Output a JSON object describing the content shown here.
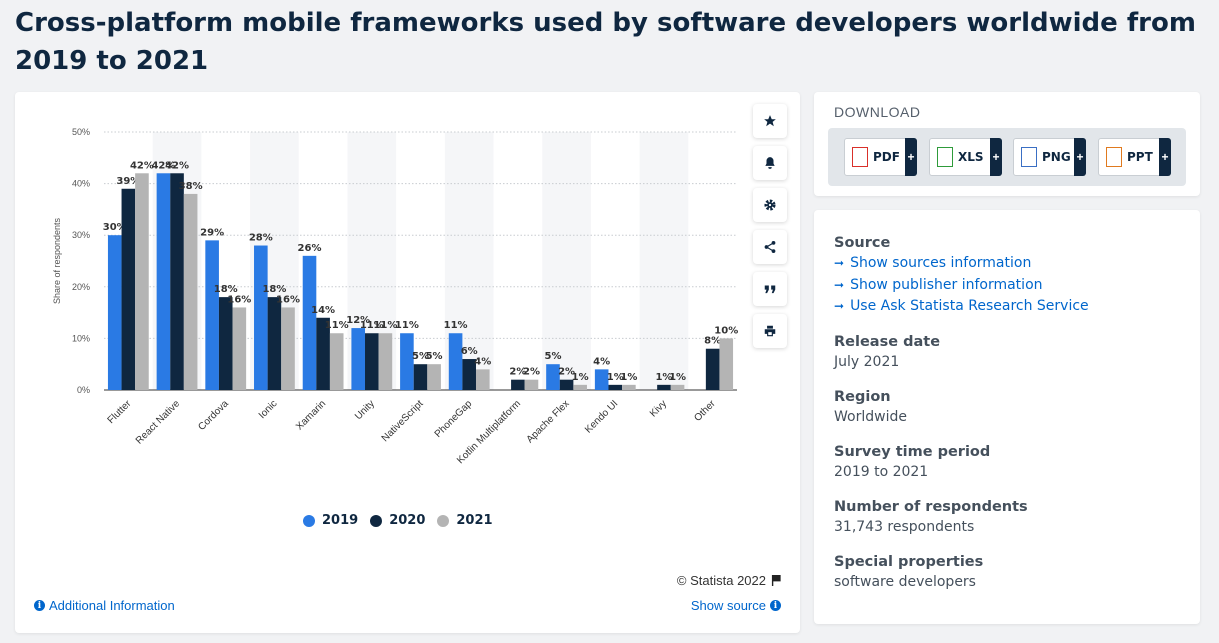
{
  "page": {
    "title": "Cross-platform mobile frameworks used by software developers worldwide from 2019 to 2021"
  },
  "toolbar": {
    "icons": [
      "star-icon",
      "bell-icon",
      "gear-icon",
      "share-icon",
      "quote-icon",
      "print-icon"
    ]
  },
  "chart_data": {
    "type": "bar",
    "title": "",
    "xlabel": "",
    "ylabel": "Share of respondents",
    "ylim": [
      0,
      50
    ],
    "yticks": [
      "0%",
      "10%",
      "20%",
      "30%",
      "40%",
      "50%"
    ],
    "grid": true,
    "legend_position": "bottom",
    "categories": [
      "Flutter",
      "React Native",
      "Cordova",
      "Ionic",
      "Xamarin",
      "Unity",
      "NativeScript",
      "PhoneGap",
      "Kotlin Multiplatform",
      "Apache Flex",
      "Kendo UI",
      "Kivy",
      "Other"
    ],
    "series": [
      {
        "name": "2019",
        "color": "#2a7ae4",
        "values": [
          30,
          42,
          29,
          28,
          26,
          12,
          11,
          11,
          null,
          5,
          4,
          null,
          null
        ],
        "labels": [
          "30%",
          "42%",
          "29%",
          "28%",
          "26%",
          "12%",
          "11%",
          "11%",
          "",
          "5%",
          "4%",
          "",
          ""
        ]
      },
      {
        "name": "2020",
        "color": "#0f2740",
        "values": [
          39,
          42,
          18,
          18,
          14,
          11,
          5,
          6,
          2,
          2,
          1,
          1,
          8
        ],
        "labels": [
          "39%",
          "42%",
          "18%",
          "18%",
          "14%",
          "11%",
          "5%",
          "6%",
          "2%",
          "2%",
          "1%",
          "1%",
          "8%"
        ]
      },
      {
        "name": "2021",
        "color": "#b4b4b4",
        "values": [
          42,
          38,
          16,
          16,
          11,
          11,
          5,
          4,
          2,
          1,
          1,
          1,
          10
        ],
        "labels": [
          "42%",
          "38%",
          "16%",
          "16%",
          "11%",
          "11%",
          "5%",
          "4%",
          "2%",
          "1%",
          "1%",
          "1%",
          "10%"
        ]
      }
    ]
  },
  "legend": {
    "items": [
      {
        "label": "2019",
        "color": "#2a7ae4"
      },
      {
        "label": "2020",
        "color": "#0f2740"
      },
      {
        "label": "2021",
        "color": "#b4b4b4"
      }
    ]
  },
  "footer": {
    "copyright": "© Statista 2022",
    "additional_info": "Additional Information",
    "show_source": "Show source"
  },
  "download": {
    "title": "DOWNLOAD",
    "buttons": [
      {
        "label": "PDF",
        "color": "#d9302a"
      },
      {
        "label": "XLS",
        "color": "#2e9b3a"
      },
      {
        "label": "PNG",
        "color": "#3a6fc4"
      },
      {
        "label": "PPT",
        "color": "#e07a1f"
      }
    ],
    "plus": "+"
  },
  "info": {
    "source_heading": "Source",
    "links": [
      "Show sources information",
      "Show publisher information",
      "Use Ask Statista Research Service"
    ],
    "release_date_heading": "Release date",
    "release_date": "July 2021",
    "region_heading": "Region",
    "region": "Worldwide",
    "survey_period_heading": "Survey time period",
    "survey_period": "2019 to 2021",
    "respondents_heading": "Number of respondents",
    "respondents": "31,743 respondents",
    "special_heading": "Special properties",
    "special": "software developers"
  }
}
